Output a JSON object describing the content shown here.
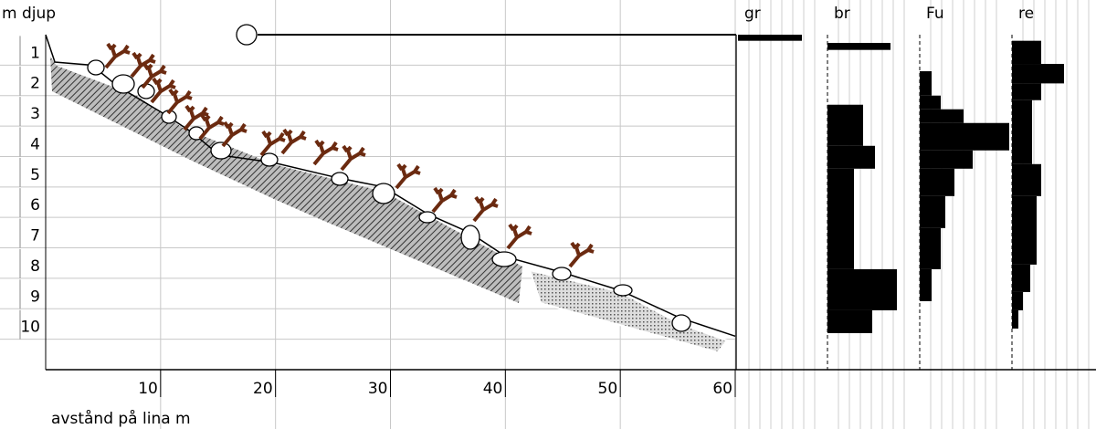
{
  "chart_data": {
    "type": "transect",
    "ylabel": "m djup",
    "xlabel": "avstånd på lina m",
    "xlim": [
      0,
      60
    ],
    "xticks": [
      10,
      20,
      30,
      40,
      50,
      60
    ],
    "ylim": [
      0,
      11
    ],
    "yticks": [
      1,
      2,
      3,
      4,
      5,
      6,
      7,
      8,
      9,
      10
    ],
    "grid": true,
    "profile": {
      "color": "#000000",
      "x": [
        0,
        0.8,
        4,
        6.3,
        10.3,
        12.7,
        15.1,
        19.8,
        25.4,
        29.4,
        33.3,
        36.9,
        40.1,
        44.9,
        50,
        55.2,
        60
      ],
      "y": [
        0,
        0.9,
        1.0,
        1.7,
        2.6,
        3.2,
        3.95,
        4.2,
        4.7,
        5.0,
        5.9,
        6.5,
        7.3,
        7.8,
        8.4,
        9.3,
        9.9
      ]
    },
    "columns": [
      {
        "name": "gr",
        "color": "#000000",
        "xlim": [
          0,
          10
        ],
        "bins": [
          0,
          0.2
        ],
        "values": [
          7
        ]
      },
      {
        "name": "br",
        "color": "#000000",
        "xlim": [
          0,
          10
        ],
        "bins": [
          0.27,
          0.5,
          2.3,
          3.65,
          4.4,
          7.7,
          9.05,
          9.8
        ],
        "values": [
          6.9,
          null,
          3.9,
          5.2,
          2.9,
          7.6,
          4.9
        ]
      },
      {
        "name": "Fu",
        "color": "#000000",
        "xlim": [
          0,
          10
        ],
        "bins": [
          1.2,
          2.0,
          2.45,
          2.9,
          3.8,
          4.4,
          5.3,
          6.35,
          7.7,
          8.75
        ],
        "values": [
          1.3,
          2.3,
          4.8,
          9.8,
          5.8,
          3.8,
          2.8,
          2.3,
          1.3
        ]
      },
      {
        "name": "re",
        "color": "#000000",
        "xlim": [
          0,
          10
        ],
        "bins": [
          0.2,
          0.96,
          1.6,
          2.15,
          4.25,
          5.3,
          7.55,
          8.45,
          9.05,
          9.65
        ],
        "values": [
          3.2,
          5.7,
          3.2,
          2.2,
          3.2,
          2.7,
          2.0,
          1.2,
          0.7
        ]
      }
    ]
  }
}
